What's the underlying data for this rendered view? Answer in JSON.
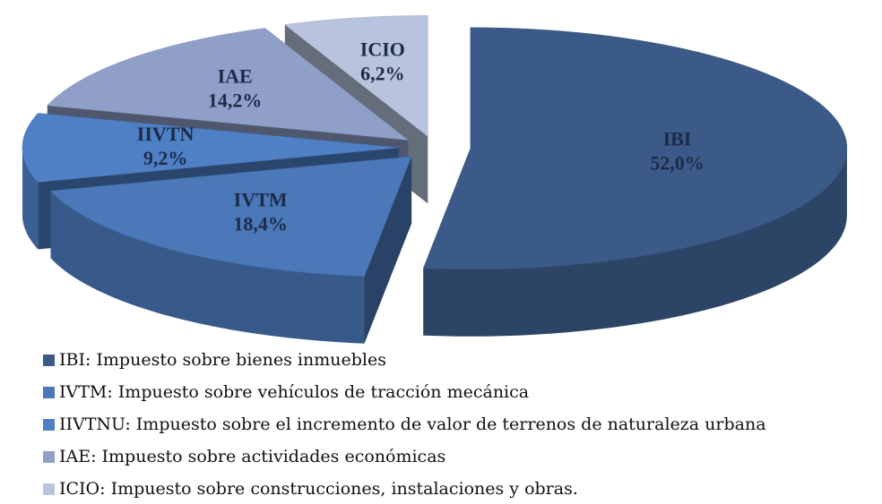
{
  "chart_data": {
    "type": "pie3d",
    "categories": [
      "IBI",
      "IVTM",
      "IIVTN",
      "IAE",
      "ICIO"
    ],
    "values": [
      52.0,
      18.4,
      9.2,
      14.2,
      6.2
    ],
    "value_labels": [
      "52,0%",
      "18,4%",
      "9,2%",
      "14,2%",
      "6,2%"
    ],
    "colors": [
      "#3b5a88",
      "#4a78b8",
      "#4f80c6",
      "#8f9fc8",
      "#b8c4de"
    ],
    "legend": [
      "IBI: Impuesto sobre bienes inmuebles",
      "IVTM: Impuesto sobre vehículos de tracción mecánica",
      "IIVTNU: Impuesto sobre el incremento de valor de terrenos de naturaleza urbana",
      "IAE: Impuesto sobre actividades económicas",
      "ICIO: Impuesto sobre construcciones, instalaciones y obras."
    ]
  }
}
